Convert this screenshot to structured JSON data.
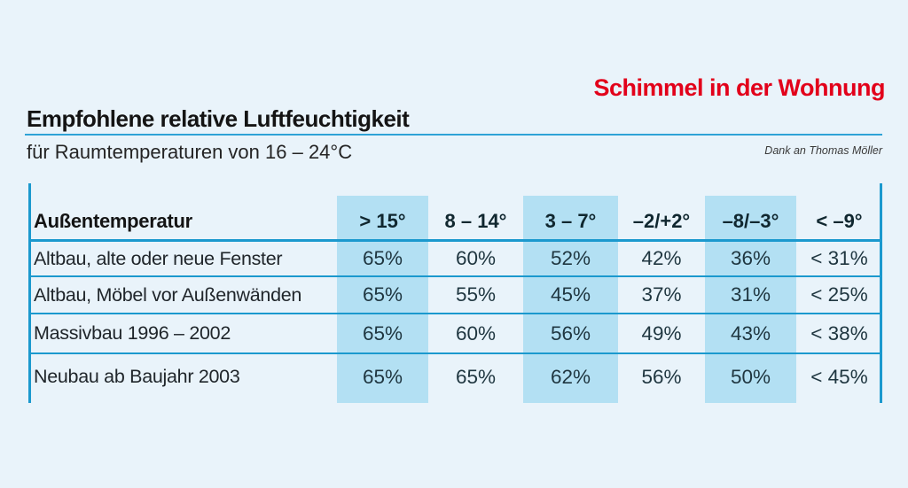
{
  "page": {
    "brand": "Schimmel in der Wohnung",
    "title": "Empfohlene relative Luftfeuchtigkeit",
    "subtitle": "für Raumtemperaturen von 16 – 24°C",
    "credit": "Dank an Thomas Möller"
  },
  "colors": {
    "background": "#e9f3fa",
    "column_highlight": "#b3e0f3",
    "table_lines": "#1b99ce",
    "brand_red": "#e2001a",
    "text_dark": "#1f3038"
  },
  "chart_data": {
    "type": "table",
    "title": "Empfohlene relative Luftfeuchtigkeit",
    "subtitle": "für Raumtemperaturen von 16 – 24°C",
    "columns": [
      "Außentemperatur",
      "> 15°",
      "8 – 14°",
      "3 – 7°",
      "–2/+2°",
      "–8/–3°",
      "< –9°"
    ],
    "highlighted_column_indexes": [
      1,
      3,
      5
    ],
    "rows": [
      {
        "label": "Altbau, alte oder neue Fenster",
        "values": [
          "65%",
          "60%",
          "52%",
          "42%",
          "36%",
          "< 31%"
        ]
      },
      {
        "label": "Altbau, Möbel vor Außenwänden",
        "values": [
          "65%",
          "55%",
          "45%",
          "37%",
          "31%",
          "< 25%"
        ]
      },
      {
        "label": "Massivbau 1996 – 2002",
        "values": [
          "65%",
          "60%",
          "56%",
          "49%",
          "43%",
          "< 38%"
        ]
      },
      {
        "label": "Neubau ab Baujahr 2003",
        "values": [
          "65%",
          "65%",
          "62%",
          "56%",
          "50%",
          "< 45%"
        ]
      }
    ]
  }
}
